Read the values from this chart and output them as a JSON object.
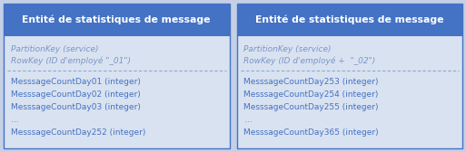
{
  "header_bg": "#4472C4",
  "header_text_color": "#FFFFFF",
  "body_bg": "#D9E2F0",
  "border_color": "#4472C4",
  "key_text_color": "#7B96C8",
  "value_text_color": "#4472C4",
  "separator_color": "#8BAAD4",
  "outer_bg": "#C5D0E6",
  "boxes": [
    {
      "header": "Entité de statistiques de message",
      "keys": [
        "PartitionKey (service)",
        "RowKey (ID d'employé \"_01\")"
      ],
      "values": [
        "MesssageCountDay01 (integer)",
        "MesssageCountDay02 (integer)",
        "MesssageCountDay03 (integer)",
        "...",
        "MesssageCountDay252 (integer)"
      ]
    },
    {
      "header": "Entité de statistiques de message",
      "keys": [
        "PartitionKey (service)",
        "RowKey (ID d'employé +  \"_02\")"
      ],
      "values": [
        "MesssageCountDay253 (integer)",
        "MesssageCountDay254 (integer)",
        "MesssageCountDay255 (integer)",
        "...",
        "MesssageCountDay365 (integer)"
      ]
    }
  ],
  "fig_width": 5.13,
  "fig_height": 1.68,
  "dpi": 100
}
